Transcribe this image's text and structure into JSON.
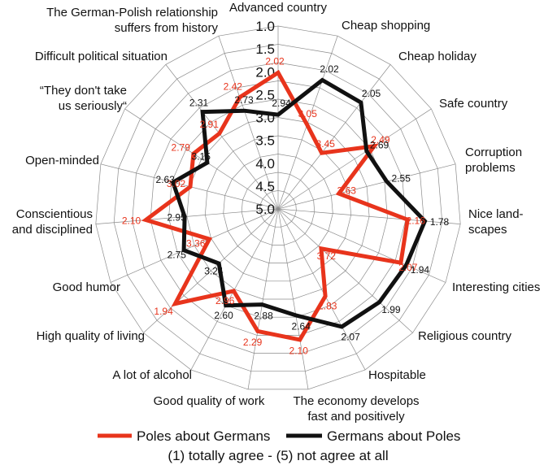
{
  "chart_data": {
    "type": "radar",
    "r_range": [
      1.0,
      5.0
    ],
    "r_reversed": true,
    "ticks": [
      "1.0",
      "1.5",
      "2.0",
      "2.5",
      "3.0",
      "3.5",
      "4.0",
      "4.5",
      "5.0"
    ],
    "tick_values": [
      1.0,
      1.5,
      2.0,
      2.5,
      3.0,
      3.5,
      4.0,
      4.5,
      5.0
    ],
    "axes": [
      "Advanced country",
      "Cheap shopping",
      "Cheap holiday",
      "Safe country",
      "Corruption problems",
      "Nice land- scapes",
      "Interesting cities",
      "Religious country",
      "Hospitable",
      "The economy develops fast and positively",
      "Good quality of work",
      "A lot of alcohol",
      "High quality of living",
      "Good humor",
      "Conscientious and disciplined",
      "Open-minded",
      "“They don't take us seriously“",
      "Difficult political situation",
      "The German-Polish relationship suffers from history"
    ],
    "series": [
      {
        "name": "Poles about Germans",
        "color": "#e8341c",
        "values": [
          2.02,
          3.05,
          3.45,
          2.49,
          3.63,
          2.16,
          2.07,
          3.72,
          2.83,
          2.1,
          2.29,
          2.96,
          1.94,
          3.36,
          2.1,
          3.02,
          2.79,
          2.91,
          2.42
        ]
      },
      {
        "name": "Germans about Poles",
        "color": "#111111",
        "values": [
          2.94,
          2.02,
          2.05,
          2.69,
          2.55,
          1.78,
          1.94,
          1.99,
          2.07,
          2.64,
          2.88,
          2.6,
          3.24,
          2.75,
          2.95,
          2.63,
          3.15,
          2.31,
          2.73
        ]
      }
    ],
    "legend_position": "bottom",
    "note": "(1) totally agree - (5) not agree at all"
  }
}
